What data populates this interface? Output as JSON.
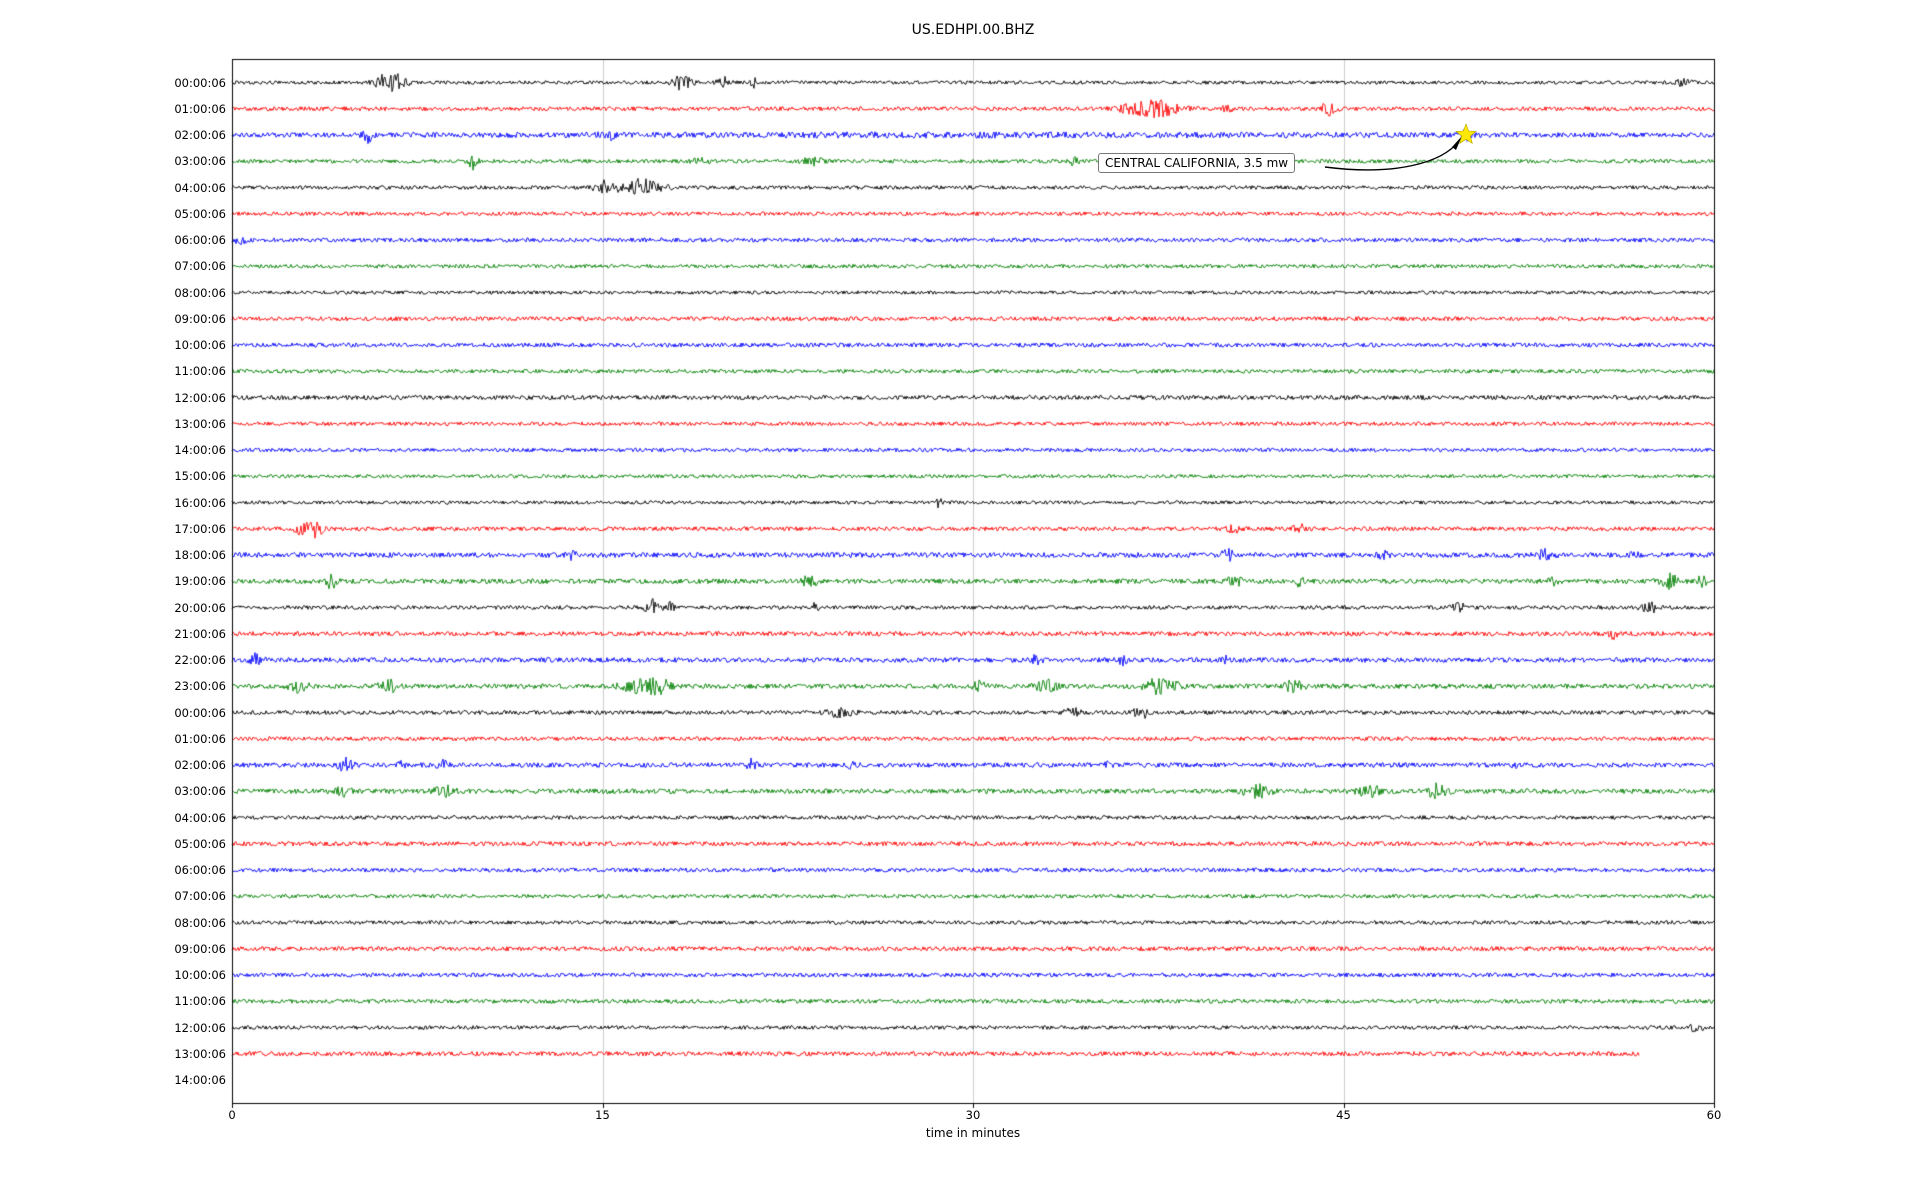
{
  "title": "US.EDHPI.00.BHZ",
  "chart_data": {
    "type": "line",
    "subtype": "helicorder-seismogram",
    "title": "US.EDHPI.00.BHZ",
    "xlabel": "time in minutes",
    "x_ticks": [
      "0",
      "15",
      "30",
      "45",
      "60"
    ],
    "x_range": [
      0,
      60
    ],
    "grid": true,
    "legend": "none",
    "colors_cycle": [
      "#000000",
      "#ff0000",
      "#0000ff",
      "#008000"
    ],
    "annotation": {
      "text": "CENTRAL CALIFORNIA, 3.5 mw",
      "marker": "yellow-star",
      "marker_row_label": "02:00:06",
      "marker_row_index": 2,
      "marker_time_minutes": 50,
      "star_color": "#ffe800"
    },
    "rows": [
      {
        "label": "00:00:06",
        "noise": 1.1,
        "end": 60,
        "events": [
          [
            6.3,
            5,
            0.5
          ],
          [
            6.9,
            3,
            0.3
          ],
          [
            18.2,
            4,
            0.4
          ],
          [
            19.9,
            3,
            0.25
          ],
          [
            21.1,
            4,
            0.12
          ],
          [
            58.8,
            2.5,
            0.3
          ]
        ]
      },
      {
        "label": "01:00:06",
        "noise": 1.3,
        "end": 60,
        "events": [
          [
            36.2,
            2,
            0.5
          ],
          [
            37.4,
            5,
            0.9
          ],
          [
            40.3,
            2.5,
            0.2
          ],
          [
            44.4,
            6,
            0.25
          ]
        ]
      },
      {
        "label": "02:00:06",
        "noise": 1.5,
        "end": 60,
        "events": [
          [
            5.5,
            4,
            0.2
          ],
          [
            15.3,
            2,
            0.4
          ],
          [
            30,
            0.6,
            15
          ],
          [
            50,
            2.5,
            0.3
          ]
        ]
      },
      {
        "label": "03:00:06",
        "noise": 1.2,
        "end": 60,
        "events": [
          [
            9.8,
            5,
            0.2
          ],
          [
            19,
            2,
            0.3
          ],
          [
            23.5,
            2,
            0.4
          ],
          [
            34,
            2.5,
            0.25
          ]
        ]
      },
      {
        "label": "04:00:06",
        "noise": 1.2,
        "end": 60,
        "events": [
          [
            15.2,
            4,
            0.5
          ],
          [
            16.6,
            5,
            0.5
          ],
          [
            17.4,
            3,
            0.3
          ]
        ]
      },
      {
        "label": "05:00:06",
        "noise": 1.2,
        "end": 60,
        "events": []
      },
      {
        "label": "06:00:06",
        "noise": 1.3,
        "end": 60,
        "events": [
          [
            0.4,
            2,
            0.3
          ]
        ]
      },
      {
        "label": "07:00:06",
        "noise": 1.2,
        "end": 60,
        "events": []
      },
      {
        "label": "08:00:06",
        "noise": 1.1,
        "end": 60,
        "events": []
      },
      {
        "label": "09:00:06",
        "noise": 1.3,
        "end": 60,
        "events": []
      },
      {
        "label": "10:00:06",
        "noise": 1.3,
        "end": 60,
        "events": []
      },
      {
        "label": "11:00:06",
        "noise": 1.2,
        "end": 60,
        "events": []
      },
      {
        "label": "12:00:06",
        "noise": 1.4,
        "end": 60,
        "events": []
      },
      {
        "label": "13:00:06",
        "noise": 1.2,
        "end": 60,
        "events": []
      },
      {
        "label": "14:00:06",
        "noise": 1.2,
        "end": 60,
        "events": []
      },
      {
        "label": "15:00:06",
        "noise": 1.1,
        "end": 60,
        "events": []
      },
      {
        "label": "16:00:06",
        "noise": 1.1,
        "end": 60,
        "events": [
          [
            28.6,
            2.5,
            0.15
          ]
        ]
      },
      {
        "label": "17:00:06",
        "noise": 1.3,
        "end": 60,
        "events": [
          [
            2.6,
            3,
            0.3
          ],
          [
            3.3,
            5,
            0.35
          ],
          [
            40.5,
            3,
            0.25
          ],
          [
            43.2,
            2.5,
            0.25
          ]
        ]
      },
      {
        "label": "18:00:06",
        "noise": 1.6,
        "end": 60,
        "events": [
          [
            13.7,
            2.5,
            0.2
          ],
          [
            40.3,
            3,
            0.25
          ],
          [
            46.6,
            2.5,
            0.2
          ],
          [
            53.2,
            3.5,
            0.3
          ],
          [
            56.8,
            2.5,
            0.2
          ]
        ]
      },
      {
        "label": "19:00:06",
        "noise": 1.5,
        "end": 60,
        "events": [
          [
            4,
            4,
            0.25
          ],
          [
            23.4,
            3.5,
            0.3
          ],
          [
            40.6,
            3.5,
            0.25
          ],
          [
            43.2,
            2.5,
            0.2
          ],
          [
            53.5,
            2.5,
            0.2
          ],
          [
            58.2,
            4,
            0.4
          ],
          [
            59.5,
            2.5,
            0.2
          ]
        ]
      },
      {
        "label": "20:00:06",
        "noise": 1.2,
        "end": 60,
        "events": [
          [
            17,
            5,
            0.25
          ],
          [
            17.7,
            3,
            0.2
          ],
          [
            23.6,
            2.5,
            0.15
          ],
          [
            49.7,
            2.5,
            0.35
          ],
          [
            57.4,
            3,
            0.35
          ]
        ]
      },
      {
        "label": "21:00:06",
        "noise": 1.4,
        "end": 60,
        "events": [
          [
            55.9,
            4.5,
            0.15
          ]
        ]
      },
      {
        "label": "22:00:06",
        "noise": 1.5,
        "end": 60,
        "events": [
          [
            1,
            3.5,
            0.25
          ],
          [
            32.6,
            3.5,
            0.2
          ],
          [
            36,
            3,
            0.2
          ],
          [
            40.2,
            2.5,
            0.2
          ]
        ]
      },
      {
        "label": "23:00:06",
        "noise": 1.5,
        "end": 60,
        "events": [
          [
            2.7,
            3.5,
            0.35
          ],
          [
            6.4,
            3.5,
            0.4
          ],
          [
            16.4,
            3.5,
            0.7
          ],
          [
            17.3,
            4.5,
            0.4
          ],
          [
            30.2,
            2.5,
            0.3
          ],
          [
            33,
            3.5,
            0.4
          ],
          [
            37.6,
            4.5,
            0.7
          ],
          [
            43,
            3.5,
            0.35
          ]
        ]
      },
      {
        "label": "00:00:06",
        "noise": 1.3,
        "end": 60,
        "events": [
          [
            24.6,
            2.5,
            0.5
          ],
          [
            34,
            2.5,
            0.3
          ],
          [
            36.8,
            4.5,
            0.25
          ]
        ]
      },
      {
        "label": "01:00:06",
        "noise": 1.3,
        "end": 60,
        "events": []
      },
      {
        "label": "02:00:06",
        "noise": 1.5,
        "end": 60,
        "events": [
          [
            4.6,
            3.5,
            0.3
          ],
          [
            6.8,
            2.5,
            0.2
          ],
          [
            8.5,
            2.5,
            0.2
          ],
          [
            21,
            3,
            0.2
          ],
          [
            25,
            2.5,
            0.2
          ],
          [
            35.5,
            3,
            0.2
          ],
          [
            52,
            2.5,
            0.2
          ]
        ]
      },
      {
        "label": "03:00:06",
        "noise": 1.5,
        "end": 60,
        "events": [
          [
            4.5,
            3.5,
            0.3
          ],
          [
            8.6,
            3,
            0.4
          ],
          [
            41.5,
            3.5,
            0.5
          ],
          [
            46,
            3.5,
            0.5
          ],
          [
            48.8,
            4,
            0.4
          ]
        ]
      },
      {
        "label": "04:00:06",
        "noise": 1.2,
        "end": 60,
        "events": []
      },
      {
        "label": "05:00:06",
        "noise": 1.4,
        "end": 60,
        "events": []
      },
      {
        "label": "06:00:06",
        "noise": 1.3,
        "end": 60,
        "events": []
      },
      {
        "label": "07:00:06",
        "noise": 1.2,
        "end": 60,
        "events": []
      },
      {
        "label": "08:00:06",
        "noise": 1.2,
        "end": 60,
        "events": []
      },
      {
        "label": "09:00:06",
        "noise": 1.4,
        "end": 60,
        "events": []
      },
      {
        "label": "10:00:06",
        "noise": 1.3,
        "end": 60,
        "events": []
      },
      {
        "label": "11:00:06",
        "noise": 1.3,
        "end": 60,
        "events": []
      },
      {
        "label": "12:00:06",
        "noise": 1.2,
        "end": 60,
        "events": [
          [
            59.3,
            2.5,
            0.25
          ]
        ]
      },
      {
        "label": "13:00:06",
        "noise": 1.4,
        "end": 57,
        "events": []
      },
      {
        "label": "14:00:06",
        "noise": 0,
        "end": 0,
        "events": []
      }
    ]
  }
}
